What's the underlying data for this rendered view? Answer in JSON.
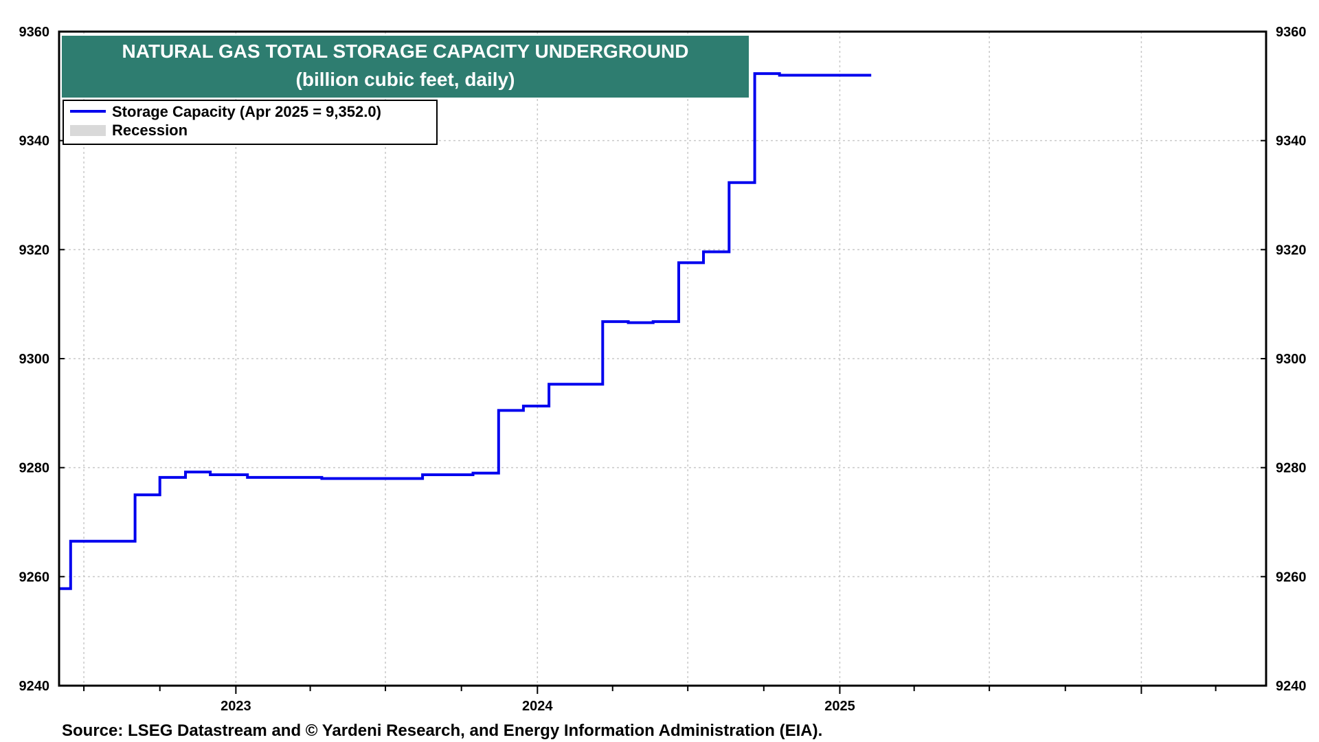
{
  "colors": {
    "series": "#0000ee",
    "title_bg": "#2e7d70",
    "recession": "#d9d9d9",
    "grid": "#c8c8c8"
  },
  "source": "Source: LSEG Datastream and © Yardeni Research, and Energy Information Administration (EIA).",
  "chart_data": {
    "type": "line",
    "title": "NATURAL GAS TOTAL STORAGE  CAPACITY UNDERGROUND",
    "subtitle": "(billion cubic feet, daily)",
    "xlabel": "",
    "ylabel": "",
    "ylim": [
      9240,
      9360
    ],
    "y_ticks": [
      9240,
      9260,
      9280,
      9300,
      9320,
      9340,
      9360
    ],
    "xlim": [
      "2022-06-01",
      "2026-06-01"
    ],
    "x_ticks": [
      {
        "label": "2023",
        "date": "2023-01-01"
      },
      {
        "label": "2024",
        "date": "2024-01-01"
      },
      {
        "label": "2025",
        "date": "2025-01-01"
      }
    ],
    "grid": true,
    "dual_y_axis": true,
    "legend": {
      "placement": "top-left",
      "entries": [
        {
          "label": "Storage Capacity (Apr 2025 = 9,352.0)",
          "kind": "line"
        },
        {
          "label": "Recession",
          "kind": "box"
        }
      ]
    },
    "series": [
      {
        "name": "Storage Capacity (Apr 2025 = 9,352.0)",
        "step": true,
        "points": [
          [
            "2022-06-01",
            9257.8
          ],
          [
            "2022-06-15",
            9266.5
          ],
          [
            "2022-09-01",
            9275.0
          ],
          [
            "2022-10-01",
            9278.2
          ],
          [
            "2022-11-01",
            9279.2
          ],
          [
            "2022-12-01",
            9278.7
          ],
          [
            "2023-01-15",
            9278.2
          ],
          [
            "2023-04-15",
            9278.0
          ],
          [
            "2023-08-15",
            9278.7
          ],
          [
            "2023-10-15",
            9279.0
          ],
          [
            "2023-11-15",
            9290.5
          ],
          [
            "2023-12-15",
            9291.3
          ],
          [
            "2024-01-15",
            9295.3
          ],
          [
            "2024-03-20",
            9306.8
          ],
          [
            "2024-04-20",
            9306.6
          ],
          [
            "2024-05-20",
            9306.8
          ],
          [
            "2024-06-20",
            9317.6
          ],
          [
            "2024-07-20",
            9319.6
          ],
          [
            "2024-08-20",
            9332.3
          ],
          [
            "2024-09-20",
            9352.3
          ],
          [
            "2024-10-20",
            9352.0
          ],
          [
            "2025-02-08",
            9352.0
          ]
        ]
      }
    ]
  }
}
